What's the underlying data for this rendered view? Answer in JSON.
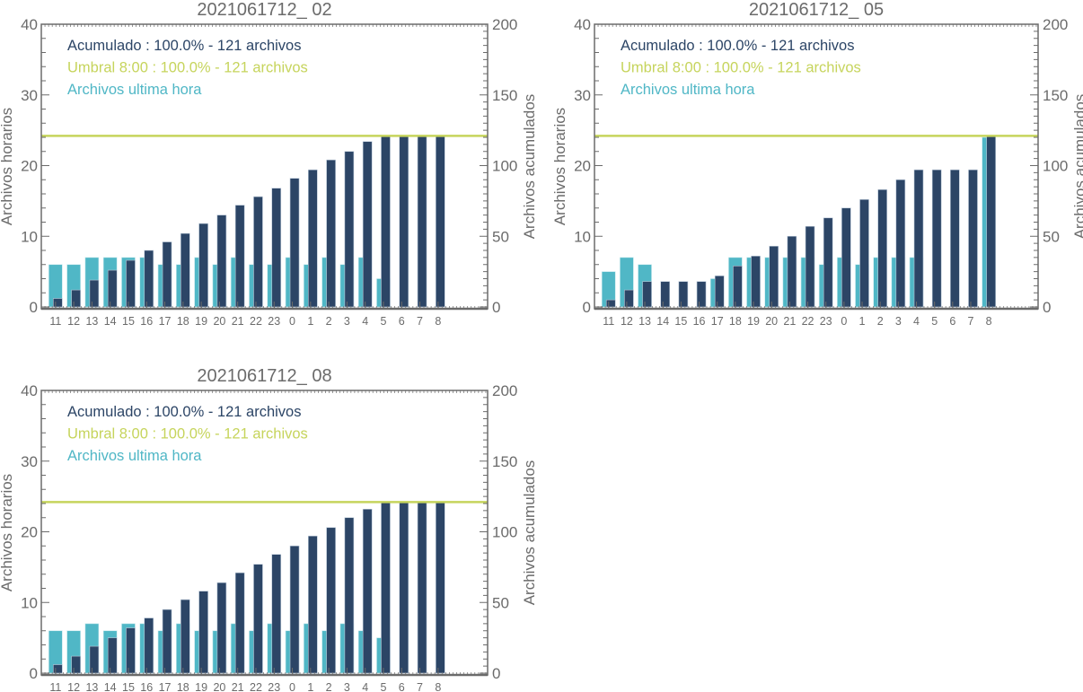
{
  "colors": {
    "cumulative": "#2c4566",
    "hourly": "#50b7c6",
    "threshold": "#c6d45c",
    "axis": "#6b6b6b",
    "text": "#6b6b6b"
  },
  "chart_data": [
    {
      "type": "bar",
      "title": "2021061712_ 02",
      "ylabel": "Archivos horarios",
      "y2label": "Archivos acumulados",
      "ylim": [
        0,
        40
      ],
      "y2lim": [
        0,
        200
      ],
      "yticks": [
        0,
        10,
        20,
        30,
        40
      ],
      "y2ticks": [
        0,
        50,
        100,
        150,
        200
      ],
      "legend": [
        "Acumulado : 100.0% - 121 archivos",
        "Umbral 8:00 : 100.0% - 121 archivos",
        "Archivos ultima hora"
      ],
      "legend_placement": "top-left",
      "categories": [
        "11",
        "12",
        "13",
        "14",
        "15",
        "16",
        "17",
        "18",
        "19",
        "20",
        "21",
        "22",
        "23",
        "0",
        "1",
        "2",
        "3",
        "4",
        "5",
        "6",
        "7",
        "8"
      ],
      "series": [
        {
          "name": "Archivos ultima hora",
          "axis": "left",
          "values": [
            6,
            6,
            7,
            7,
            7,
            7,
            6,
            6,
            7,
            6,
            7,
            6,
            6,
            7,
            6,
            7,
            6,
            7,
            4,
            0,
            0,
            0
          ]
        },
        {
          "name": "Acumulado",
          "axis": "right",
          "values": [
            6,
            12,
            19,
            26,
            33,
            40,
            46,
            52,
            59,
            65,
            72,
            78,
            84,
            91,
            97,
            104,
            110,
            117,
            121,
            121,
            121,
            121
          ]
        }
      ],
      "threshold": 121
    },
    {
      "type": "bar",
      "title": "2021061712_ 05",
      "ylabel": "Archivos horarios",
      "y2label": "Archivos acumulados",
      "ylim": [
        0,
        40
      ],
      "y2lim": [
        0,
        200
      ],
      "yticks": [
        0,
        10,
        20,
        30,
        40
      ],
      "y2ticks": [
        0,
        50,
        100,
        150,
        200
      ],
      "legend": [
        "Acumulado : 100.0% - 121 archivos",
        "Umbral 8:00 : 100.0% - 121 archivos",
        "Archivos ultima hora"
      ],
      "legend_placement": "top-left",
      "categories": [
        "11",
        "12",
        "13",
        "14",
        "15",
        "16",
        "17",
        "18",
        "19",
        "20",
        "21",
        "22",
        "23",
        "0",
        "1",
        "2",
        "3",
        "4",
        "5",
        "6",
        "7",
        "8"
      ],
      "series": [
        {
          "name": "Archivos ultima hora",
          "axis": "left",
          "values": [
            5,
            7,
            6,
            0,
            0,
            0,
            4,
            7,
            7,
            7,
            7,
            7,
            6,
            7,
            6,
            7,
            7,
            7,
            0,
            0,
            0,
            24
          ]
        },
        {
          "name": "Acumulado",
          "axis": "right",
          "values": [
            5,
            12,
            18,
            18,
            18,
            18,
            22,
            29,
            36,
            43,
            50,
            57,
            63,
            70,
            76,
            83,
            90,
            97,
            97,
            97,
            97,
            121
          ]
        }
      ],
      "threshold": 121
    },
    {
      "type": "bar",
      "title": "2021061712_ 08",
      "ylabel": "Archivos horarios",
      "y2label": "Archivos acumulados",
      "ylim": [
        0,
        40
      ],
      "y2lim": [
        0,
        200
      ],
      "yticks": [
        0,
        10,
        20,
        30,
        40
      ],
      "y2ticks": [
        0,
        50,
        100,
        150,
        200
      ],
      "legend": [
        "Acumulado : 100.0% - 121 archivos",
        "Umbral 8:00 : 100.0% - 121 archivos",
        "Archivos ultima hora"
      ],
      "legend_placement": "top-left",
      "categories": [
        "11",
        "12",
        "13",
        "14",
        "15",
        "16",
        "17",
        "18",
        "19",
        "20",
        "21",
        "22",
        "23",
        "0",
        "1",
        "2",
        "3",
        "4",
        "5",
        "6",
        "7",
        "8"
      ],
      "series": [
        {
          "name": "Archivos ultima hora",
          "axis": "left",
          "values": [
            6,
            6,
            7,
            6,
            7,
            7,
            6,
            7,
            6,
            6,
            7,
            6,
            7,
            6,
            7,
            6,
            7,
            6,
            5,
            0,
            0,
            0
          ]
        },
        {
          "name": "Acumulado",
          "axis": "right",
          "values": [
            6,
            12,
            19,
            25,
            32,
            39,
            45,
            52,
            58,
            64,
            71,
            77,
            84,
            90,
            97,
            103,
            110,
            116,
            121,
            121,
            121,
            121
          ]
        }
      ],
      "threshold": 121
    }
  ]
}
